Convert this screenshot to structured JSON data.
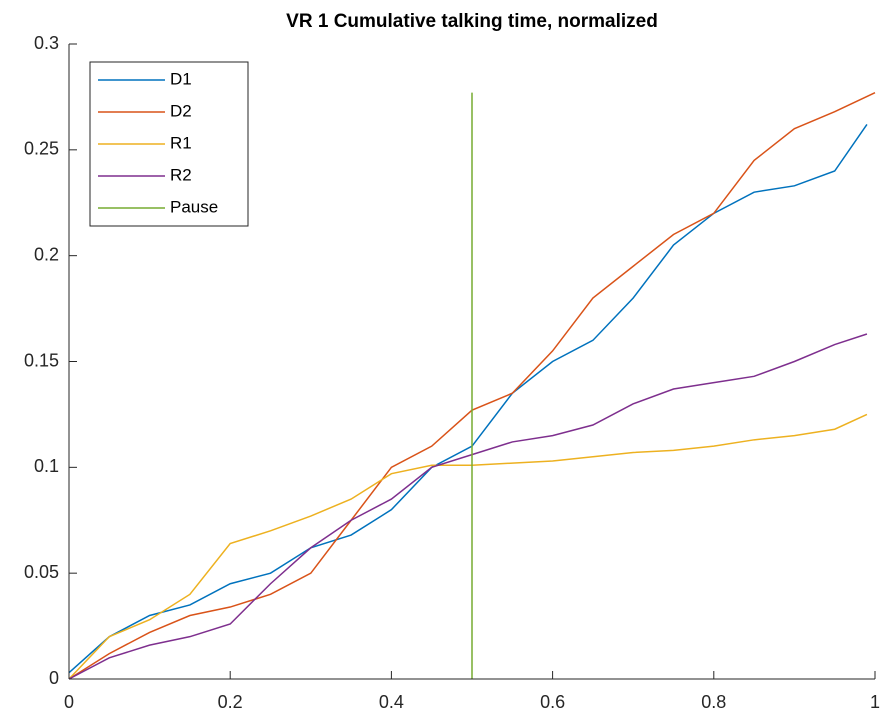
{
  "chart_data": {
    "type": "line",
    "title": "VR 1 Cumulative talking time, normalized",
    "xlim": [
      0,
      1
    ],
    "ylim": [
      0,
      0.3
    ],
    "xticks": [
      0,
      0.2,
      0.4,
      0.6,
      0.8,
      1
    ],
    "yticks": [
      0,
      0.05,
      0.1,
      0.15,
      0.2,
      0.25,
      0.3
    ],
    "legend": "northwest",
    "grid": false,
    "series": [
      {
        "name": "D1",
        "color": "#0072BD",
        "x": [
          0,
          0.05,
          0.1,
          0.15,
          0.2,
          0.25,
          0.3,
          0.35,
          0.4,
          0.45,
          0.5,
          0.55,
          0.6,
          0.65,
          0.7,
          0.75,
          0.8,
          0.85,
          0.9,
          0.95,
          0.99
        ],
        "values": [
          0.003,
          0.02,
          0.03,
          0.035,
          0.045,
          0.05,
          0.062,
          0.068,
          0.08,
          0.1,
          0.11,
          0.135,
          0.15,
          0.16,
          0.18,
          0.205,
          0.22,
          0.23,
          0.233,
          0.24,
          0.262
        ]
      },
      {
        "name": "D2",
        "color": "#D95319",
        "x": [
          0,
          0.05,
          0.1,
          0.15,
          0.2,
          0.25,
          0.3,
          0.35,
          0.4,
          0.45,
          0.5,
          0.55,
          0.6,
          0.65,
          0.7,
          0.75,
          0.8,
          0.85,
          0.9,
          0.95,
          1
        ],
        "values": [
          0,
          0.012,
          0.022,
          0.03,
          0.034,
          0.04,
          0.05,
          0.075,
          0.1,
          0.11,
          0.127,
          0.135,
          0.155,
          0.18,
          0.195,
          0.21,
          0.22,
          0.245,
          0.26,
          0.268,
          0.277
        ]
      },
      {
        "name": "R1",
        "color": "#EDB120",
        "x": [
          0,
          0.05,
          0.1,
          0.15,
          0.2,
          0.25,
          0.3,
          0.35,
          0.4,
          0.45,
          0.5,
          0.55,
          0.6,
          0.65,
          0.7,
          0.75,
          0.8,
          0.85,
          0.9,
          0.95,
          0.99
        ],
        "values": [
          0,
          0.02,
          0.028,
          0.04,
          0.064,
          0.07,
          0.077,
          0.085,
          0.097,
          0.101,
          0.101,
          0.102,
          0.103,
          0.105,
          0.107,
          0.108,
          0.11,
          0.113,
          0.115,
          0.118,
          0.125
        ]
      },
      {
        "name": "R2",
        "color": "#7E2F8E",
        "x": [
          0,
          0.05,
          0.1,
          0.15,
          0.2,
          0.25,
          0.3,
          0.35,
          0.4,
          0.45,
          0.5,
          0.55,
          0.6,
          0.65,
          0.7,
          0.75,
          0.8,
          0.85,
          0.9,
          0.95,
          0.99
        ],
        "values": [
          0,
          0.01,
          0.016,
          0.02,
          0.026,
          0.045,
          0.062,
          0.075,
          0.085,
          0.1,
          0.106,
          0.112,
          0.115,
          0.12,
          0.13,
          0.137,
          0.14,
          0.143,
          0.15,
          0.158,
          0.163
        ]
      },
      {
        "name": "Pause",
        "color": "#77AC30",
        "x": [
          0.5,
          0.5
        ],
        "values": [
          0,
          0.277
        ]
      }
    ]
  }
}
